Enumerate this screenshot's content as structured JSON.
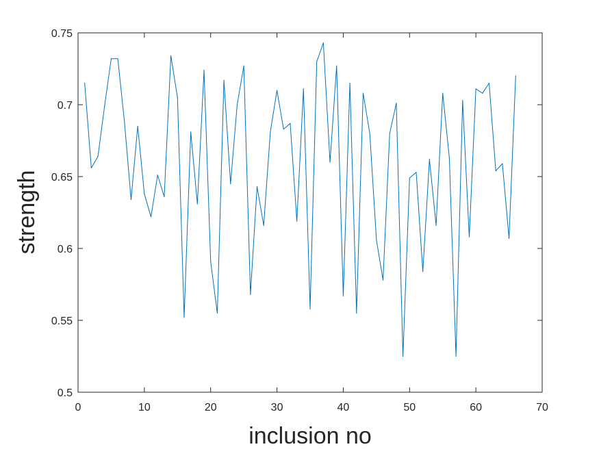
{
  "chart_data": {
    "type": "line",
    "title": "",
    "xlabel": "inclusion no",
    "ylabel": "strength",
    "xlim": [
      0,
      70
    ],
    "ylim": [
      0.5,
      0.75
    ],
    "xticks": [
      0,
      10,
      20,
      30,
      40,
      50,
      60,
      70
    ],
    "yticks": [
      0.5,
      0.55,
      0.6,
      0.65,
      0.7,
      0.75
    ],
    "xtick_labels": [
      "0",
      "10",
      "20",
      "30",
      "40",
      "50",
      "60",
      "70"
    ],
    "ytick_labels": [
      "0.5",
      "0.55",
      "0.6",
      "0.65",
      "0.7",
      "0.75"
    ],
    "grid": false,
    "line_color": "#0072bd",
    "series": [
      {
        "x": [
          1,
          2,
          3,
          4,
          5,
          6,
          7,
          8,
          9,
          10,
          11,
          12,
          13,
          14,
          15,
          16,
          17,
          18,
          19,
          20,
          21,
          22,
          23,
          24,
          25,
          26,
          27,
          28,
          29,
          30,
          31,
          32,
          33,
          34,
          35,
          36,
          37,
          38,
          39,
          40,
          41,
          42,
          43,
          44,
          45,
          46,
          47,
          48,
          49,
          50,
          51,
          52,
          53,
          54,
          55,
          56,
          57,
          58,
          59,
          60,
          61,
          62,
          63,
          64,
          65,
          66
        ],
        "values": [
          0.715,
          0.656,
          0.664,
          0.699,
          0.732,
          0.732,
          0.688,
          0.634,
          0.685,
          0.638,
          0.622,
          0.651,
          0.636,
          0.734,
          0.705,
          0.552,
          0.681,
          0.631,
          0.724,
          0.591,
          0.555,
          0.717,
          0.645,
          0.7,
          0.727,
          0.568,
          0.643,
          0.616,
          0.681,
          0.71,
          0.683,
          0.687,
          0.619,
          0.711,
          0.558,
          0.73,
          0.743,
          0.66,
          0.727,
          0.567,
          0.715,
          0.555,
          0.708,
          0.68,
          0.606,
          0.578,
          0.68,
          0.701,
          0.525,
          0.649,
          0.653,
          0.584,
          0.662,
          0.616,
          0.708,
          0.663,
          0.525,
          0.703,
          0.608,
          0.711,
          0.708,
          0.715,
          0.654,
          0.659,
          0.607,
          0.72
        ]
      }
    ]
  }
}
